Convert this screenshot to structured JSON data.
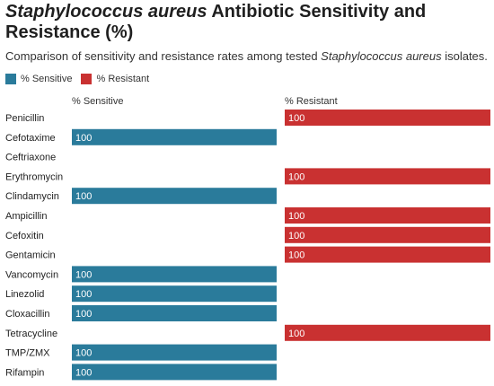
{
  "chart_data": {
    "type": "bar",
    "title_italic": "Staphylococcus aureus",
    "title_rest": " Antibiotic Sensitivity and Resistance (%)",
    "subtitle_pre": "Comparison of sensitivity and resistance rates among tested ",
    "subtitle_italic": "Staphylococcus aureus",
    "subtitle_post": " isolates.",
    "xlim": [
      0,
      100
    ],
    "categories": [
      "Penicillin",
      "Cefotaxime",
      "Ceftriaxone",
      "Erythromycin",
      "Clindamycin",
      "Ampicillin",
      "Cefoxitin",
      "Gentamicin",
      "Vancomycin",
      "Linezolid",
      "Cloxacillin",
      "Tetracycline",
      "TMP/ZMX",
      "Rifampin"
    ],
    "series": [
      {
        "name": "% Sensitive",
        "color": "#2a7b9b",
        "values": [
          null,
          100,
          null,
          null,
          100,
          null,
          null,
          null,
          100,
          100,
          100,
          null,
          100,
          100
        ]
      },
      {
        "name": "% Resistant",
        "color": "#c93131",
        "values": [
          100,
          null,
          null,
          100,
          null,
          100,
          100,
          100,
          null,
          null,
          null,
          100,
          null,
          null
        ]
      }
    ]
  }
}
